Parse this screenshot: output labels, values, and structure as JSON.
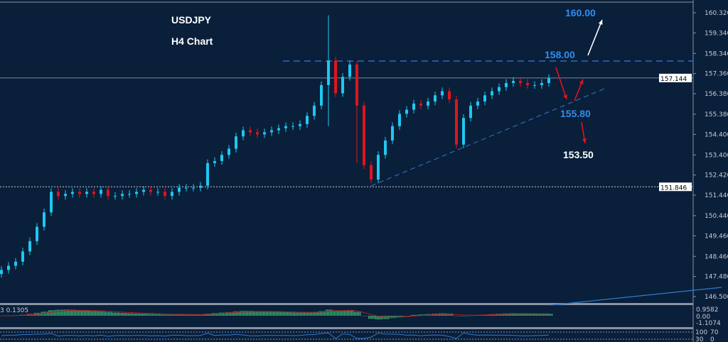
{
  "header": {
    "symbol": "USDJPY",
    "timeframe": "H4 Chart"
  },
  "colors": {
    "background": "#0a1f3a",
    "bull": "#1ec8f0",
    "bear": "#e0141e",
    "annotation_blue": "#2f8ef0",
    "annotation_white": "#ffffff",
    "macd_hist": "#3cb371",
    "macd_signal": "#c0141e",
    "lower_line": "#2f7ad0"
  },
  "chart_data": {
    "type": "candlestick",
    "symbol": "USDJPY",
    "ylim": [
      146.2,
      161.0
    ],
    "y_ticks": [
      "160.320",
      "159.340",
      "158.340",
      "157.360",
      "156.380",
      "155.380",
      "154.400",
      "153.400",
      "152.420",
      "151.440",
      "150.440",
      "149.460",
      "148.460",
      "147.480",
      "146.500"
    ],
    "closes": [
      147.8,
      148.0,
      148.2,
      148.7,
      149.2,
      149.9,
      150.6,
      151.6,
      151.4,
      151.5,
      151.6,
      151.5,
      151.6,
      151.5,
      151.7,
      151.4,
      151.4,
      151.5,
      151.5,
      151.6,
      151.7,
      151.6,
      151.6,
      151.4,
      151.6,
      151.8,
      151.8,
      151.8,
      151.9,
      153.0,
      153.1,
      153.4,
      153.7,
      154.3,
      154.6,
      154.5,
      154.4,
      154.5,
      154.6,
      154.7,
      154.8,
      154.8,
      154.9,
      155.3,
      155.8,
      156.8,
      158.0,
      156.4,
      157.2,
      157.8,
      155.8,
      152.9,
      152.2,
      153.4,
      154.1,
      154.8,
      155.4,
      155.6,
      155.9,
      155.8,
      156.0,
      156.3,
      156.5,
      156.1,
      153.9,
      155.2,
      155.8,
      156.0,
      156.3,
      156.5,
      156.7,
      156.9,
      157.0,
      156.9,
      156.8,
      156.8,
      156.9,
      157.144
    ],
    "extremes": [
      {
        "index": 46,
        "high": 160.2,
        "low": 154.8
      },
      {
        "index": 50,
        "low": 153.0
      }
    ],
    "price_lines": [
      {
        "label": "157.144",
        "value": 157.144,
        "style": "solid"
      },
      {
        "label": "151.846",
        "value": 151.846,
        "style": "dotted"
      },
      {
        "value": 157.97,
        "style": "dashed"
      }
    ],
    "trendline": {
      "from": {
        "index": 52,
        "price": 151.89
      },
      "to_price": 156.62
    },
    "annotations": [
      {
        "text": "160.00",
        "color": "blue"
      },
      {
        "text": "158.00",
        "color": "blue"
      },
      {
        "text": "155.80",
        "color": "blue"
      },
      {
        "text": "153.50",
        "color": "white"
      }
    ],
    "arrows": [
      "up-white",
      "down-red",
      "up-red",
      "down-red"
    ],
    "macd": {
      "label": "3 0.1305",
      "ticks": [
        "0.9582",
        "0.00",
        "-1.1074"
      ]
    },
    "lower_panel": {
      "ticks": [
        "100",
        "70",
        "30",
        "0"
      ]
    }
  }
}
